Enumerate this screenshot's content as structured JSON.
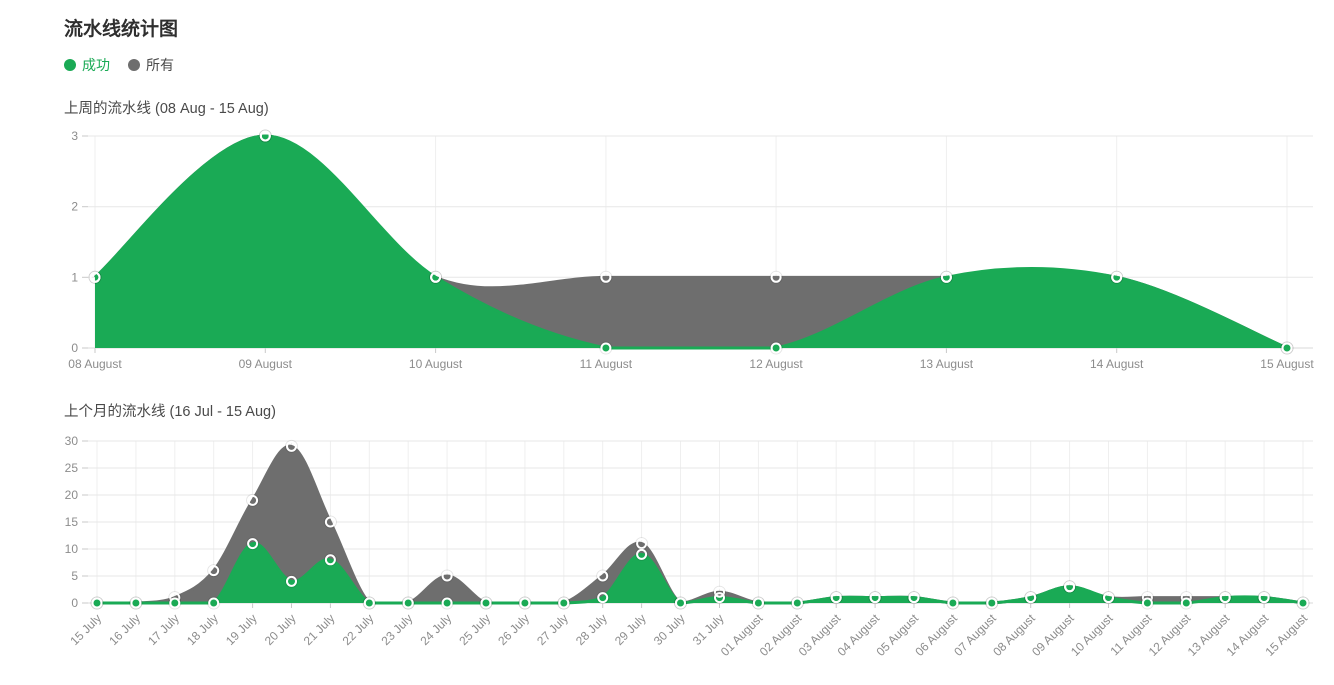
{
  "page": {
    "title": "流水线统计图"
  },
  "legend": {
    "position": "top",
    "items": [
      {
        "label": "成功",
        "color": "#1aaa55"
      },
      {
        "label": "所有",
        "color": "#6e6e6e"
      }
    ]
  },
  "chart_data": [
    {
      "type": "area",
      "title": "上周的流水线 (08 Aug - 15 Aug)",
      "smooth": true,
      "grid": true,
      "x_label_rotation": 0,
      "categories": [
        "08 August",
        "09 August",
        "10 August",
        "11 August",
        "12 August",
        "13 August",
        "14 August",
        "15 August"
      ],
      "series": [
        {
          "name": "所有",
          "color": "#6e6e6e",
          "values": [
            1,
            3,
            1,
            1,
            1,
            1,
            1,
            0
          ]
        },
        {
          "name": "成功",
          "color": "#1aaa55",
          "values": [
            1,
            3,
            1,
            0,
            0,
            1,
            1,
            0
          ]
        }
      ],
      "ylim": [
        0,
        3
      ],
      "yticks": [
        0,
        1,
        2,
        3
      ]
    },
    {
      "type": "area",
      "title": "上个月的流水线 (16 Jul - 15 Aug)",
      "smooth": true,
      "grid": true,
      "x_label_rotation": -45,
      "categories": [
        "15 July",
        "16 July",
        "17 July",
        "18 July",
        "19 July",
        "20 July",
        "21 July",
        "22 July",
        "23 July",
        "24 July",
        "25 July",
        "26 July",
        "27 July",
        "28 July",
        "29 July",
        "30 July",
        "31 July",
        "01 August",
        "02 August",
        "03 August",
        "04 August",
        "05 August",
        "06 August",
        "07 August",
        "08 August",
        "09 August",
        "10 August",
        "11 August",
        "12 August",
        "13 August",
        "14 August",
        "15 August"
      ],
      "series": [
        {
          "name": "所有",
          "color": "#6e6e6e",
          "values": [
            0,
            0,
            1,
            6,
            19,
            29,
            15,
            0,
            0,
            5,
            0,
            0,
            0,
            5,
            11,
            0,
            2,
            0,
            0,
            1,
            1,
            1,
            0,
            0,
            1,
            3,
            1,
            1,
            1,
            1,
            1,
            0
          ]
        },
        {
          "name": "成功",
          "color": "#1aaa55",
          "values": [
            0,
            0,
            0,
            0,
            11,
            4,
            8,
            0,
            0,
            0,
            0,
            0,
            0,
            1,
            9,
            0,
            1,
            0,
            0,
            1,
            1,
            1,
            0,
            0,
            1,
            3,
            1,
            0,
            0,
            1,
            1,
            0
          ]
        }
      ],
      "ylim": [
        0,
        30
      ],
      "yticks": [
        0,
        5,
        10,
        15,
        20,
        25,
        30
      ]
    }
  ]
}
